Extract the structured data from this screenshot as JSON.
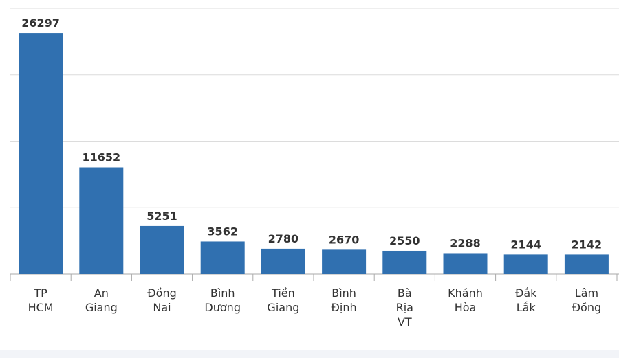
{
  "chart_data": {
    "type": "bar",
    "categories": [
      "TP HCM",
      "An Giang",
      "Đồng Nai",
      "Bình Dương",
      "Tiền Giang",
      "Bình Định",
      "Bà Rịa VT",
      "Khánh Hòa",
      "Đắk Lắk",
      "Lâm Đồng"
    ],
    "values": [
      26297,
      11652,
      5251,
      3562,
      2780,
      2670,
      2550,
      2288,
      2144,
      2142
    ],
    "color": "#3070b0",
    "ylim": [
      0,
      29000
    ],
    "yticks": [
      0,
      7250,
      14500,
      21750,
      29000
    ],
    "grid": true
  }
}
